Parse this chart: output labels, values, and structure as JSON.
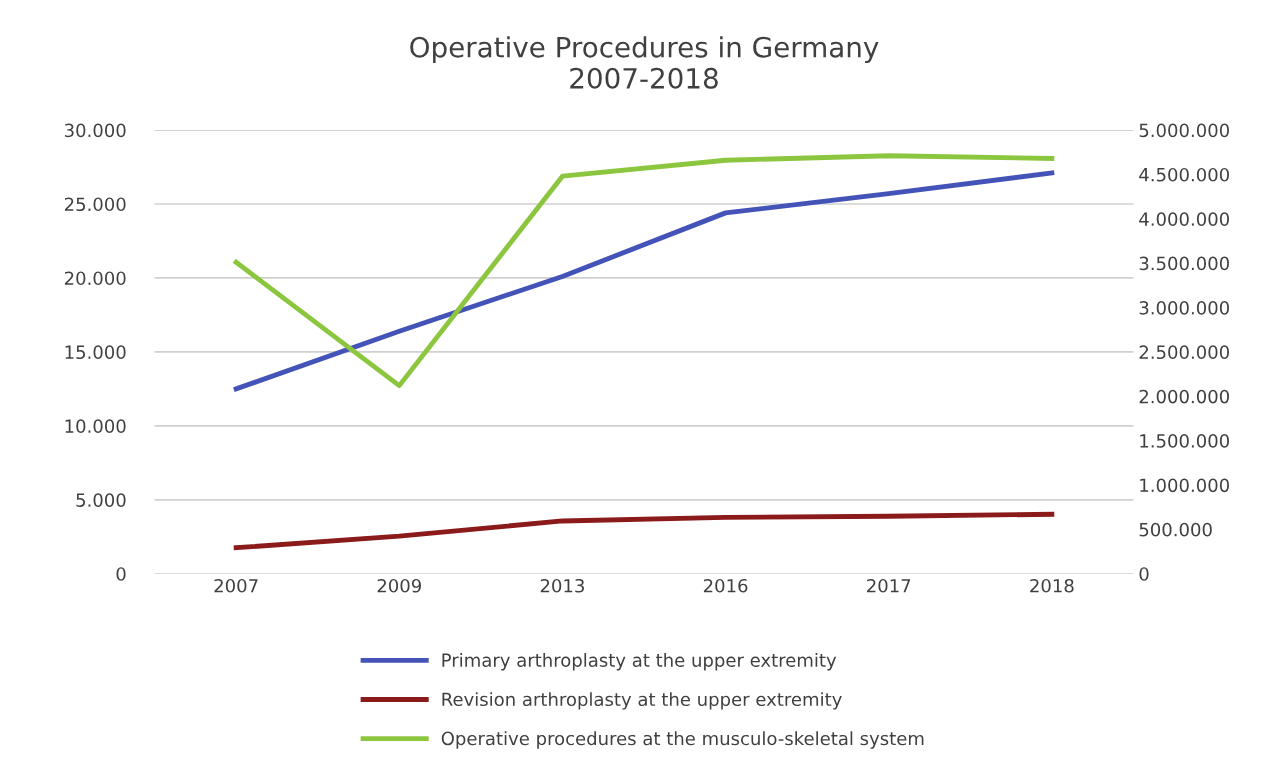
{
  "chart_data": {
    "type": "line",
    "title": "Operative Procedures in Germany\n2007-2018",
    "categories": [
      "2007",
      "2009",
      "2013",
      "2016",
      "2017",
      "2018"
    ],
    "series": [
      {
        "name": "Primary arthroplasty at the upper extremity",
        "color": "#4453b8",
        "values": [
          12500,
          16400,
          20100,
          24400,
          25700,
          27100
        ]
      },
      {
        "name": "Revision arthroplasty at the upper extremity",
        "color": "#8b1a1a",
        "values": [
          1760,
          2540,
          3570,
          3810,
          3890,
          4020
        ]
      },
      {
        "name": "Operative procedures at the musculo-skeletal system",
        "color": "#8cc63f",
        "axis": "y2",
        "values": [
          3510000,
          2120000,
          4480000,
          4660000,
          4710000,
          4680000
        ]
      }
    ],
    "ylim": [
      0,
      30000
    ],
    "yticks": [
      0,
      {
        "value": 5000,
        "label": "5.000"
      },
      {
        "value": 10000,
        "label": "10.000"
      },
      {
        "value": 15000,
        "label": "15.000"
      },
      {
        "value": 20000,
        "label": "20.000"
      },
      {
        "value": 25000,
        "label": "25.000"
      },
      {
        "value": 30000,
        "label": "30.000"
      }
    ],
    "y2lim": [
      0,
      5000000
    ],
    "y2ticks": [
      0,
      {
        "value": 500000,
        "label": "500.000"
      },
      {
        "value": 1000000,
        "label": "1.000.000"
      },
      {
        "value": 1500000,
        "label": "1.500.000"
      },
      {
        "value": 2000000,
        "label": "2.000.000"
      },
      {
        "value": 2500000,
        "label": "2.500.000"
      },
      {
        "value": 3000000,
        "label": "3.000.000"
      },
      {
        "value": 3500000,
        "label": "3.500.000"
      },
      {
        "value": 4000000,
        "label": "4.000.000"
      },
      {
        "value": 4500000,
        "label": "4.500.000"
      },
      {
        "value": 5000000,
        "label": "5.000.000"
      }
    ],
    "grid": "y",
    "legend": "bottom",
    "marker": "none",
    "line_style": "solid"
  }
}
